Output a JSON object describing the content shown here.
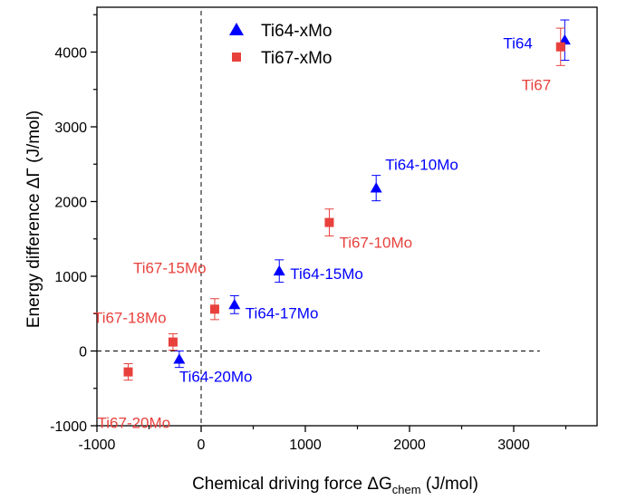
{
  "chart_data": {
    "type": "scatter",
    "title": "",
    "xlabel": "Chemical driving force ΔG",
    "xlabel_sub": "chem",
    "xlabel_unit": " (J/mol)",
    "ylabel": "Energy difference ΔΓ (J/mol)",
    "xlim": [
      -1000,
      3800
    ],
    "ylim": [
      -1000,
      4600
    ],
    "xticks": [
      -1000,
      0,
      1000,
      2000,
      3000
    ],
    "yticks": [
      -1000,
      0,
      1000,
      2000,
      3000,
      4000
    ],
    "reference_lines": {
      "x": 0,
      "y": 0,
      "style": "dashed"
    },
    "legend_position": "top-center",
    "series": [
      {
        "name": "Ti64-xMo",
        "marker": "triangle",
        "color": "#0000ff",
        "points": [
          {
            "label": "Ti64",
            "x": 3490,
            "y": 4160,
            "err": 270
          },
          {
            "label": "Ti64-10Mo",
            "x": 1680,
            "y": 2180,
            "err": 170
          },
          {
            "label": "Ti64-15Mo",
            "x": 750,
            "y": 1070,
            "err": 150
          },
          {
            "label": "Ti64-17Mo",
            "x": 320,
            "y": 620,
            "err": 120
          },
          {
            "label": "Ti64-20Mo",
            "x": -210,
            "y": -110,
            "err": 110
          }
        ]
      },
      {
        "name": "Ti67-xMo",
        "marker": "square",
        "color": "#e8413c",
        "points": [
          {
            "label": "Ti67",
            "x": 3450,
            "y": 4070,
            "err": 250
          },
          {
            "label": "Ti67-10Mo",
            "x": 1230,
            "y": 1720,
            "err": 180
          },
          {
            "label": "Ti67-15Mo",
            "x": 130,
            "y": 560,
            "err": 140
          },
          {
            "label": "Ti67-18Mo",
            "x": -270,
            "y": 120,
            "err": 110
          },
          {
            "label": "Ti67-20Mo",
            "x": -700,
            "y": -280,
            "err": 110
          }
        ]
      }
    ]
  }
}
